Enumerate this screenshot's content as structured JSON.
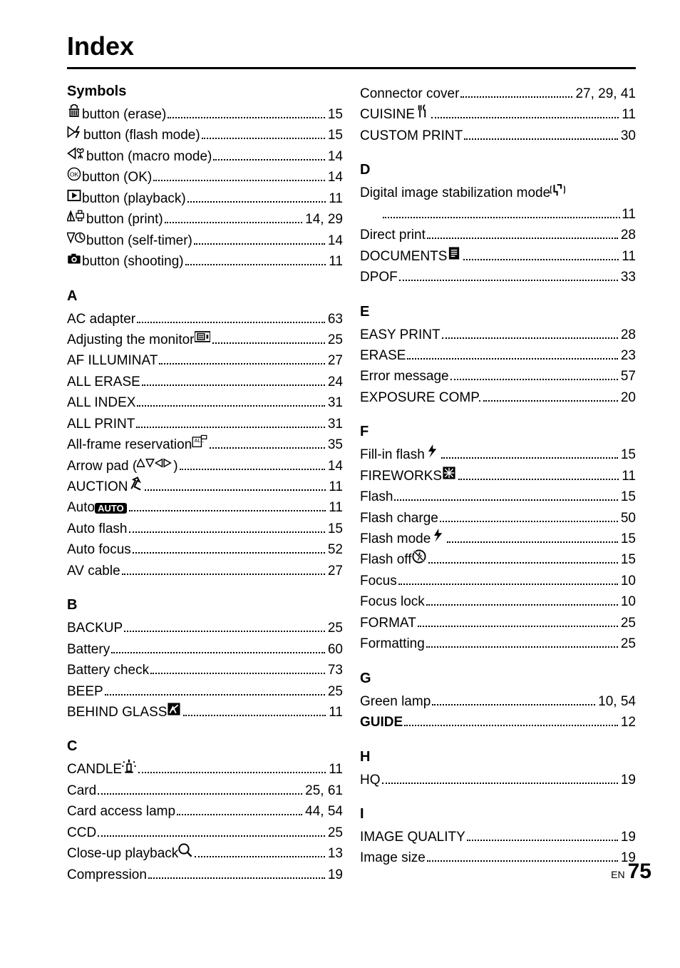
{
  "title": "Index",
  "pageLabel": "EN",
  "pageNumber": "75",
  "leftColumn": [
    {
      "heading": "Symbols",
      "first": true,
      "entries": [
        {
          "icon": "erase",
          "label": " button (erase)",
          "page": "15"
        },
        {
          "icon": "flashmode",
          "label": " button (flash mode)",
          "page": "15"
        },
        {
          "icon": "macromode",
          "label": " button (macro mode)",
          "page": "14"
        },
        {
          "icon": "ok",
          "label": " button (OK)",
          "page": "14"
        },
        {
          "icon": "playback",
          "label": " button (playback)",
          "page": "11"
        },
        {
          "icon": "print",
          "label": " button (print)",
          "page": "14, 29"
        },
        {
          "icon": "selftimer",
          "label": " button (self-timer)",
          "page": "14"
        },
        {
          "icon": "shooting",
          "label": " button (shooting)",
          "page": "11"
        }
      ]
    },
    {
      "heading": "A",
      "entries": [
        {
          "label": "AC adapter",
          "page": "63"
        },
        {
          "label": "Adjusting the monitor ",
          "trailingIcon": "monitor",
          "page": "25"
        },
        {
          "label": "AF ILLUMINAT",
          "page": "27"
        },
        {
          "label": "ALL ERASE",
          "page": "24"
        },
        {
          "label": "ALL INDEX",
          "page": "31"
        },
        {
          "label": "ALL PRINT",
          "page": "31"
        },
        {
          "label": "All-frame reservation ",
          "trailingIcon": "allframe",
          "page": "35"
        },
        {
          "label": "Arrow pad (",
          "midIcon": "arrowpad",
          "labelAfter": ")",
          "page": "14"
        },
        {
          "label": "AUCTION ",
          "trailingIcon": "auction",
          "page": "11"
        },
        {
          "label": "Auto ",
          "trailingIcon": "auto",
          "page": "11"
        },
        {
          "label": "Auto flash",
          "page": "15"
        },
        {
          "label": "Auto focus",
          "page": "52"
        },
        {
          "label": "AV cable",
          "page": "27"
        }
      ]
    },
    {
      "heading": "B",
      "entries": [
        {
          "label": "BACKUP",
          "page": "25"
        },
        {
          "label": "Battery",
          "page": "60"
        },
        {
          "label": "Battery check",
          "page": "73"
        },
        {
          "label": "BEEP",
          "page": "25"
        },
        {
          "label": "BEHIND GLASS ",
          "trailingIcon": "behindglass",
          "page": "11"
        }
      ]
    },
    {
      "heading": "C",
      "entries": [
        {
          "label": "CANDLE ",
          "trailingIcon": "candle",
          "page": "11"
        },
        {
          "label": "Card",
          "page": "25, 61"
        },
        {
          "label": "Card access lamp",
          "page": "44, 54"
        },
        {
          "label": "CCD",
          "page": "25"
        },
        {
          "label": "Close-up playback ",
          "trailingIcon": "magnify",
          "page": "13"
        },
        {
          "label": "Compression",
          "page": "19"
        }
      ]
    }
  ],
  "rightColumn": [
    {
      "heading": "",
      "first": true,
      "entries": [
        {
          "label": "Connector cover",
          "page": "27, 29, 41"
        },
        {
          "label": "CUISINE ",
          "trailingIcon": "cuisine",
          "page": "11"
        },
        {
          "label": "CUSTOM PRINT",
          "page": "30"
        }
      ]
    },
    {
      "heading": "D",
      "entries": [
        {
          "label": "Digital image stabilization mode ",
          "trailingIcon": "dis",
          "page": "",
          "noDots": true
        },
        {
          "continuation": true,
          "page": "11"
        },
        {
          "label": "Direct print",
          "page": "28"
        },
        {
          "label": "DOCUMENTS ",
          "trailingIcon": "documents",
          "page": "11"
        },
        {
          "label": "DPOF",
          "page": "33"
        }
      ]
    },
    {
      "heading": "E",
      "entries": [
        {
          "label": "EASY PRINT",
          "page": "28"
        },
        {
          "label": "ERASE",
          "page": "23"
        },
        {
          "label": "Error message",
          "page": "57"
        },
        {
          "label": "EXPOSURE COMP.",
          "page": "20"
        }
      ]
    },
    {
      "heading": "F",
      "entries": [
        {
          "label": "Fill-in flash ",
          "trailingIcon": "flash",
          "page": "15"
        },
        {
          "label": "FIREWORKS ",
          "trailingIcon": "fireworks",
          "page": "11"
        },
        {
          "label": "Flash",
          "page": "15"
        },
        {
          "label": "Flash charge",
          "page": "50"
        },
        {
          "label": "Flash mode ",
          "trailingIcon": "flash",
          "page": "15"
        },
        {
          "label": "Flash off ",
          "trailingIcon": "flashoff",
          "page": "15"
        },
        {
          "label": "Focus",
          "page": "10"
        },
        {
          "label": "Focus lock",
          "page": "10"
        },
        {
          "label": "FORMAT",
          "page": "25"
        },
        {
          "label": "Formatting",
          "page": "25"
        }
      ]
    },
    {
      "heading": "G",
      "entries": [
        {
          "label": "Green lamp",
          "page": "10, 54"
        },
        {
          "label": "GUIDE",
          "bold": true,
          "page": "12"
        }
      ]
    },
    {
      "heading": "H",
      "entries": [
        {
          "label": "HQ",
          "page": "19"
        }
      ]
    },
    {
      "heading": "I",
      "entries": [
        {
          "label": "IMAGE QUALITY",
          "page": "19"
        },
        {
          "label": "Image size",
          "page": "19"
        }
      ]
    }
  ]
}
